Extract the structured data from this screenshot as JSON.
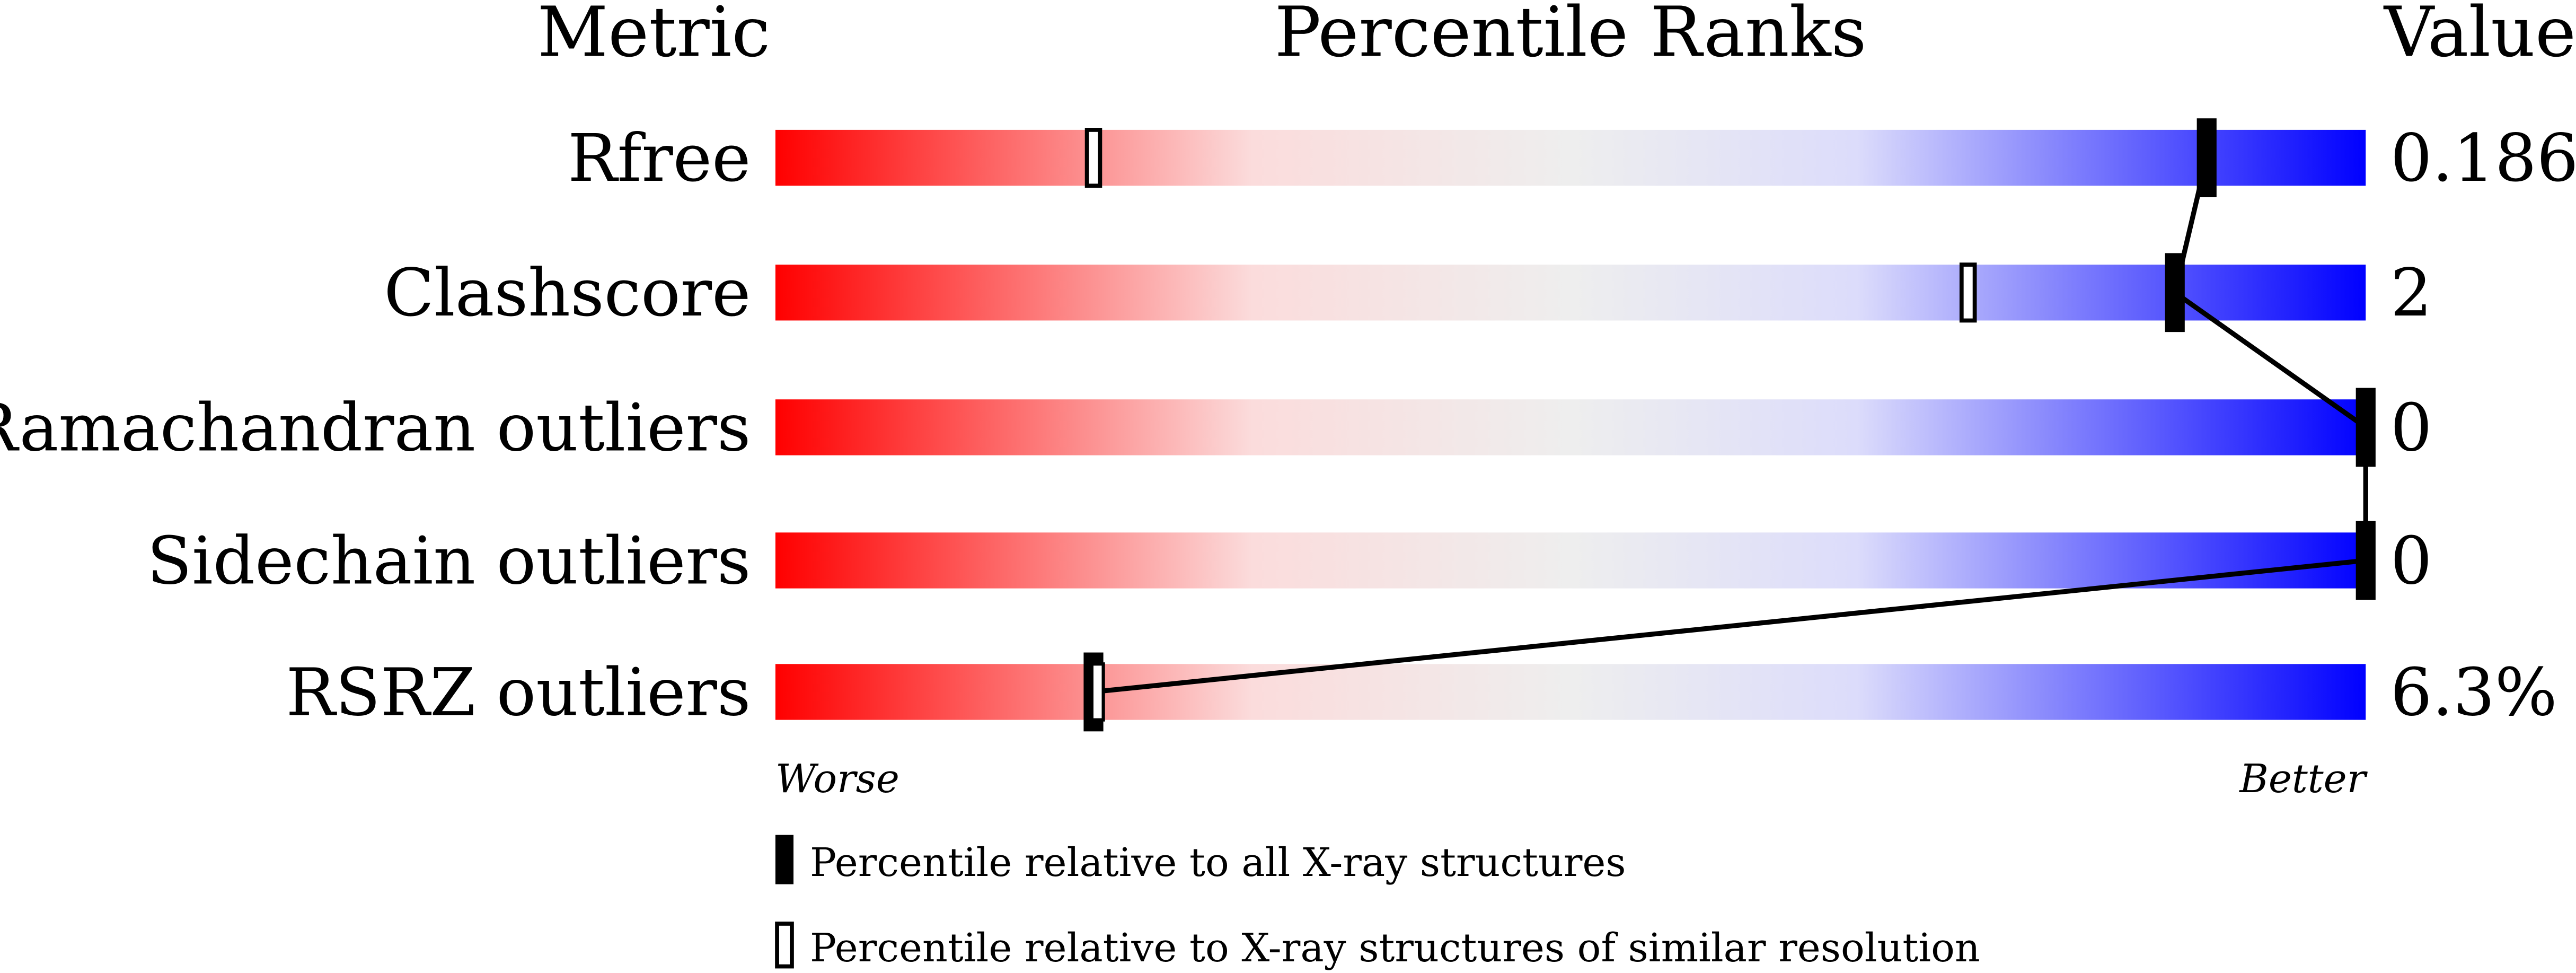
{
  "chart_data": {
    "type": "bar",
    "headers": {
      "metric": "Metric",
      "ranks": "Percentile Ranks",
      "value": "Value"
    },
    "categories": [
      "Rfree",
      "Clashscore",
      "Ramachandran outliers",
      "Sidechain outliers",
      "RSRZ outliers"
    ],
    "values": [
      "0.186",
      "2",
      "0",
      "0",
      "6.3%"
    ],
    "series": [
      {
        "name": "Percentile relative to all X-ray structures",
        "marker": "filled",
        "values": [
          90,
          88,
          100,
          100,
          20
        ]
      },
      {
        "name": "Percentile relative to X-ray structures of similar resolution",
        "marker": "open",
        "values": [
          20,
          75,
          null,
          null,
          20
        ]
      }
    ],
    "xlim": [
      0,
      100
    ],
    "axis_labels": {
      "worse": "Worse",
      "better": "Better"
    },
    "colors": {
      "worse": "#ff0000",
      "mid": "#eeeeee",
      "better": "#0000ff",
      "marker": "#000000"
    }
  }
}
